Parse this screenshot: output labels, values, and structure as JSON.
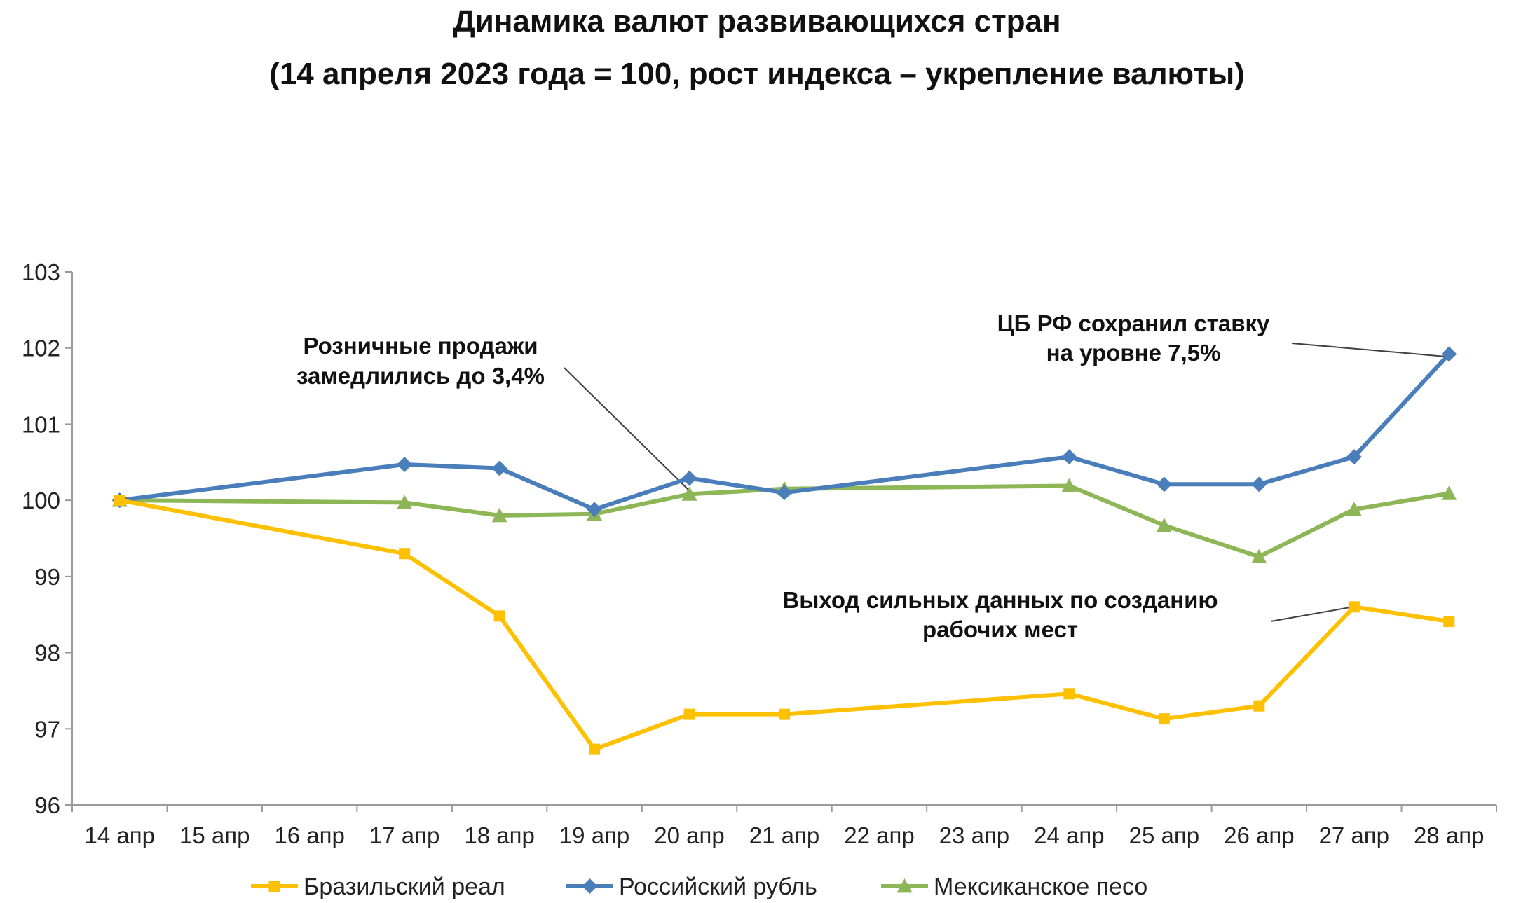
{
  "chart_data": {
    "type": "line",
    "title": "Динамика валют развивающихся стран",
    "subtitle": "(14 апреля 2023 года = 100, рост индекса – укрепление валюты)",
    "categories": [
      "14 апр",
      "15 апр",
      "16 апр",
      "17 апр",
      "18 апр",
      "19 апр",
      "20 апр",
      "21 апр",
      "22 апр",
      "23 апр",
      "24 апр",
      "25 апр",
      "26 апр",
      "27 апр",
      "28 апр"
    ],
    "ylim": [
      96,
      103
    ],
    "yticks": [
      "96",
      "97",
      "98",
      "99",
      "100",
      "101",
      "102",
      "103"
    ],
    "grid": false,
    "legend_position": "bottom",
    "series": [
      {
        "name": "Бразильский реал",
        "color": "#FFC000",
        "marker": "square",
        "values": [
          100,
          null,
          null,
          99.3,
          98.48,
          96.73,
          97.19,
          97.19,
          null,
          null,
          97.46,
          97.13,
          97.3,
          98.6,
          98.41
        ]
      },
      {
        "name": "Российский рубль",
        "color": "#4A7EBB",
        "marker": "diamond",
        "values": [
          100,
          null,
          null,
          100.47,
          100.42,
          99.88,
          100.29,
          100.1,
          null,
          null,
          100.57,
          100.21,
          100.21,
          100.57,
          101.92
        ]
      },
      {
        "name": "Мексиканское песо",
        "color": "#8DB656",
        "marker": "triangle",
        "values": [
          100,
          null,
          null,
          99.97,
          99.8,
          99.82,
          100.08,
          100.15,
          null,
          null,
          100.19,
          99.67,
          99.26,
          99.88,
          100.09
        ]
      }
    ],
    "annotations": [
      {
        "lines": [
          "Розничные продажи",
          "замедлились до 3,4%"
        ],
        "target_category": "20 апр",
        "target_value": 100.08
      },
      {
        "lines": [
          "ЦБ РФ сохранил ставку",
          "на уровне 7,5%"
        ],
        "target_category": "28 апр",
        "target_value": 101.92
      },
      {
        "lines": [
          "Выход сильных данных по созданию",
          "рабочих мест"
        ],
        "target_category": "27 апр",
        "target_value": 98.6
      }
    ]
  }
}
